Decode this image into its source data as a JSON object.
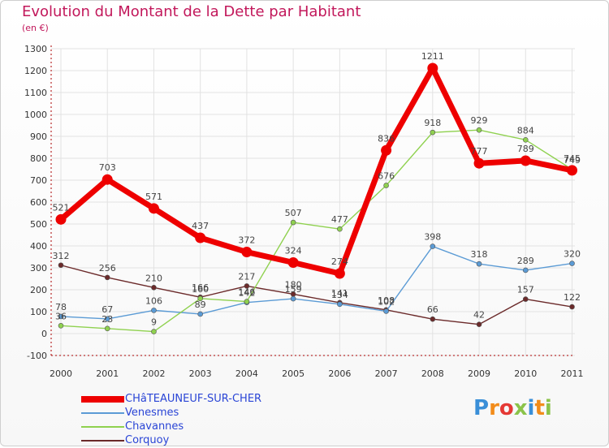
{
  "title": "Evolution du Montant de la Dette par Habitant",
  "subtitle": "(en €)",
  "logo": "Proxiti",
  "colors": {
    "title": "#c2185b",
    "axis": "#aa0000",
    "grid": "#e2e2e2"
  },
  "chart_data": {
    "type": "line",
    "x": [
      "2000",
      "2001",
      "2002",
      "2003",
      "2004",
      "2005",
      "2006",
      "2007",
      "2008",
      "2009",
      "2010",
      "2011"
    ],
    "ylim": [
      -100,
      1300
    ],
    "yticks": [
      "-100",
      "0",
      "100",
      "200",
      "300",
      "400",
      "500",
      "600",
      "700",
      "800",
      "900",
      "1000",
      "1100",
      "1200",
      "1300"
    ],
    "grid": true,
    "legend_position": "bottom-left",
    "series": [
      {
        "name": "CHâTEAUNEUF-SUR-CHER",
        "color": "#ee0000",
        "values": [
          521,
          703,
          571,
          437,
          372,
          324,
          274,
          836,
          1211,
          777,
          789,
          745
        ]
      },
      {
        "name": "Venesmes",
        "color": "#5b9bd5",
        "values": [
          78,
          67,
          106,
          89,
          142,
          159,
          134,
          102,
          398,
          318,
          289,
          320
        ]
      },
      {
        "name": "Chavannes",
        "color": "#8fd14f",
        "values": [
          36,
          23,
          9,
          160,
          146,
          507,
          477,
          676,
          918,
          929,
          884,
          749
        ]
      },
      {
        "name": "Corquoy",
        "color": "#6b2a2a",
        "values": [
          312,
          256,
          210,
          166,
          217,
          180,
          141,
          108,
          66,
          42,
          157,
          122
        ]
      }
    ]
  }
}
